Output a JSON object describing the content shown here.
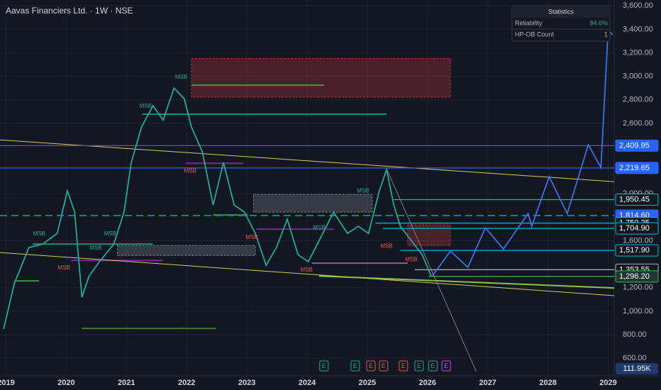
{
  "chart_data": {
    "type": "line",
    "title": "Aavas Financiers Ltd. · 1W · NSE",
    "xlim": [
      2018.9,
      2029.1
    ],
    "ylim": [
      450,
      3650
    ],
    "xticks": [
      2019,
      2020,
      2021,
      2022,
      2023,
      2024,
      2025,
      2026,
      2027,
      2028,
      2029
    ],
    "yticks": [
      {
        "value": 3600,
        "label": "3,600.00"
      },
      {
        "value": 3400,
        "label": "3,400.00"
      },
      {
        "value": 3200,
        "label": "3,200.00"
      },
      {
        "value": 3000,
        "label": "3,000.00"
      },
      {
        "value": 2800,
        "label": "2,800.00"
      },
      {
        "value": 2600,
        "label": "2,600.00"
      },
      {
        "value": 2000,
        "label": "2,000.00"
      },
      {
        "value": 1600,
        "label": "1,600.00"
      },
      {
        "value": 1200,
        "label": "1,200.00"
      },
      {
        "value": 1000,
        "label": "1,000.00"
      },
      {
        "value": 800,
        "label": "800.00"
      },
      {
        "value": 600,
        "label": "600.00"
      }
    ],
    "series": [
      {
        "color": "#26a69a",
        "x": [
          2018.96,
          2019.14,
          2019.38,
          2019.61,
          2019.85,
          2020.02,
          2020.14,
          2020.26,
          2020.38,
          2020.55,
          2020.79,
          2020.96,
          2021.08,
          2021.25,
          2021.44,
          2021.61,
          2021.79,
          2021.96,
          2022.08,
          2022.26,
          2022.44,
          2022.61,
          2022.79,
          2022.96,
          2023.14,
          2023.32,
          2023.49,
          2023.67,
          2023.85,
          2024.02,
          2024.2,
          2024.44,
          2024.67,
          2024.85,
          2025.02,
          2025.2,
          2025.32,
          2025.44,
          2025.55,
          2025.73,
          2025.91,
          2026.06
        ],
        "values": [
          848,
          1240,
          1542,
          1572,
          1663,
          2025,
          1844,
          1120,
          1300,
          1421,
          1572,
          1844,
          2266,
          2568,
          2749,
          2628,
          2900,
          2809,
          2568,
          2357,
          1904,
          2266,
          1904,
          1844,
          1663,
          1391,
          1542,
          1783,
          1482,
          1421,
          1602,
          1844,
          1663,
          1723,
          1663,
          2025,
          2206,
          1904,
          1723,
          1602,
          1482,
          1300
        ]
      },
      {
        "color": "#3d6fe8",
        "arrow": true,
        "x": [
          2026.08,
          2026.38,
          2026.67,
          2026.96,
          2027.26,
          2027.67,
          2027.73,
          2028.02,
          2028.32,
          2028.67,
          2028.88,
          2029.0
        ],
        "values": [
          1300,
          1512,
          1373,
          1711,
          1530,
          1832,
          1723,
          2145,
          1832,
          2417,
          2224,
          3401
        ]
      }
    ],
    "lines": [
      {
        "x": [
          2018.9,
          2029.1
        ],
        "values": [
          2459,
          2103
        ],
        "color": "#d8c86a"
      },
      {
        "x": [
          2018.9,
          2029.1
        ],
        "values": [
          1500,
          1132
        ],
        "color": "#d8c86a"
      },
      {
        "x": [
          2024.2,
          2029.1
        ],
        "values": [
          1300,
          1198
        ],
        "color": "#8bc34a"
      },
      {
        "x": [
          2025.32,
          2026.81
        ],
        "values": [
          2213,
          486
        ],
        "color": "#787b86"
      }
    ],
    "zones": [
      {
        "x": [
          2022.08,
          2026.38
        ],
        "values": [
          3153,
          2822
        ],
        "color": "#b2303a"
      },
      {
        "x": [
          2025.67,
          2026.38
        ],
        "values": [
          1735,
          1560
        ],
        "color": "#b2303a"
      },
      {
        "x": [
          2023.11,
          2025.08
        ],
        "values": [
          1995,
          1844
        ],
        "color": "#787b86"
      },
      {
        "x": [
          2020.85,
          2023.14
        ],
        "values": [
          1560,
          1475
        ],
        "color": "#787b86"
      }
    ],
    "segments": [
      {
        "x": [
          2021.26,
          2025.32
        ],
        "value": 2678,
        "color": "#26a69a"
      },
      {
        "x": [
          2022.08,
          2024.28
        ],
        "value": 2925,
        "color": "#4caf50"
      },
      {
        "x": [
          2019.44,
          2021.44
        ],
        "value": 1572,
        "color": "#26a69a"
      },
      {
        "x": [
          2021.99,
          2022.94
        ],
        "value": 2260,
        "color": "#9c27b0"
      },
      {
        "x": [
          2023.16,
          2024.44
        ],
        "value": 1699,
        "color": "#9c27b0"
      },
      {
        "x": [
          2022.44,
          2023.02
        ],
        "value": 1820,
        "color": "#4caf50"
      },
      {
        "x": [
          2020.26,
          2022.49
        ],
        "value": 854,
        "color": "#558b2f"
      },
      {
        "x": [
          2019.14,
          2019.55
        ],
        "value": 1258,
        "color": "#4caf50"
      },
      {
        "x": [
          2024.08,
          2025.67
        ],
        "value": 1409,
        "color": "#9c7fa8"
      },
      {
        "x": [
          2020.08,
          2021.61
        ],
        "value": 1433,
        "color": "#9c27b0"
      }
    ],
    "annotations": [
      {
        "x": 2021.91,
        "y": 2992,
        "text": "MSB",
        "color": "#26a69a"
      },
      {
        "x": 2021.32,
        "y": 2745,
        "text": "MSB",
        "color": "#26a69a"
      },
      {
        "x": 2019.55,
        "y": 1657,
        "text": "MSB",
        "color": "#26a69a"
      },
      {
        "x": 2020.49,
        "y": 1536,
        "text": "MSB",
        "color": "#26a69a"
      },
      {
        "x": 2020.73,
        "y": 1657,
        "text": "MSB",
        "color": "#26a69a"
      },
      {
        "x": 2019.96,
        "y": 1367,
        "text": "MSB",
        "color": "#ef5350"
      },
      {
        "x": 2022.06,
        "y": 2194,
        "text": "MSB",
        "color": "#ef5350"
      },
      {
        "x": 2023.08,
        "y": 1627,
        "text": "MSB",
        "color": "#ef5350"
      },
      {
        "x": 2024.2,
        "y": 1711,
        "text": "MSB",
        "color": "#26a69a"
      },
      {
        "x": 2024.93,
        "y": 2025,
        "text": "MSB",
        "color": "#26a69a"
      },
      {
        "x": 2025.32,
        "y": 1554,
        "text": "MSB",
        "color": "#ef5350"
      },
      {
        "x": 2025.73,
        "y": 1439,
        "text": "MSB",
        "color": "#ef5350"
      },
      {
        "x": 2023.99,
        "y": 1349,
        "text": "MSB",
        "color": "#ef5350"
      }
    ],
    "events": [
      {
        "x": 2024.28,
        "text": "E",
        "color": "#26a69a"
      },
      {
        "x": 2024.8,
        "text": "E",
        "color": "#26a69a"
      },
      {
        "x": 2025.06,
        "text": "E",
        "color": "#ef5350"
      },
      {
        "x": 2025.27,
        "text": "E",
        "color": "#ef5350"
      },
      {
        "x": 2025.6,
        "text": "E",
        "color": "#ef5350"
      },
      {
        "x": 2025.86,
        "text": "E",
        "color": "#26a69a"
      },
      {
        "x": 2026.09,
        "text": "E",
        "color": "#26a69a"
      },
      {
        "x": 2026.31,
        "text": "E",
        "color": "#e040fb"
      }
    ],
    "levels": [
      {
        "value": 2409.95,
        "label": "2,409.95",
        "from": 2018.9,
        "color": "#2962ff",
        "label_bg": "#2962ff"
      },
      {
        "value": 2219.65,
        "label": "2,219.65",
        "from": 2018.9,
        "color": "#2962ff",
        "label_bg": "#2962ff"
      },
      {
        "value": 1950.45,
        "label": "1,950.45",
        "from": 2025.44,
        "color": "#00bcd4",
        "label_bg": "#131722"
      },
      {
        "value": 1814.6,
        "label": "1,814.60",
        "from": 2018.9,
        "color": "#2962ff",
        "label_bg": "#2962ff",
        "dashed": true
      },
      {
        "value": 1750.25,
        "label": "1,750.25",
        "from": 2025.14,
        "color": "#00bcd4",
        "label_bg": "#131722"
      },
      {
        "value": 1704.9,
        "label": "1,704.90",
        "from": 2025.26,
        "color": "#00bcd4",
        "label_bg": "#131722"
      },
      {
        "value": 1517.9,
        "label": "1,517.90",
        "from": 2025.55,
        "color": "#00bcd4",
        "label_bg": "#131722"
      },
      {
        "value": 1353.55,
        "label": "1,353.55",
        "from": 2025.79,
        "color": "#b2b5be",
        "label_bg": "#131722"
      },
      {
        "value": 1296.2,
        "label": "1,296.20",
        "from": 2026.02,
        "color": "#4caf50",
        "label_bg": "#1b3b30"
      }
    ],
    "volume_label": "111.95K",
    "statistics": {
      "title": "Statistics",
      "rows": [
        [
          "Reliability",
          "84.6%"
        ],
        [
          "HP-OB Count",
          "1"
        ]
      ]
    }
  }
}
